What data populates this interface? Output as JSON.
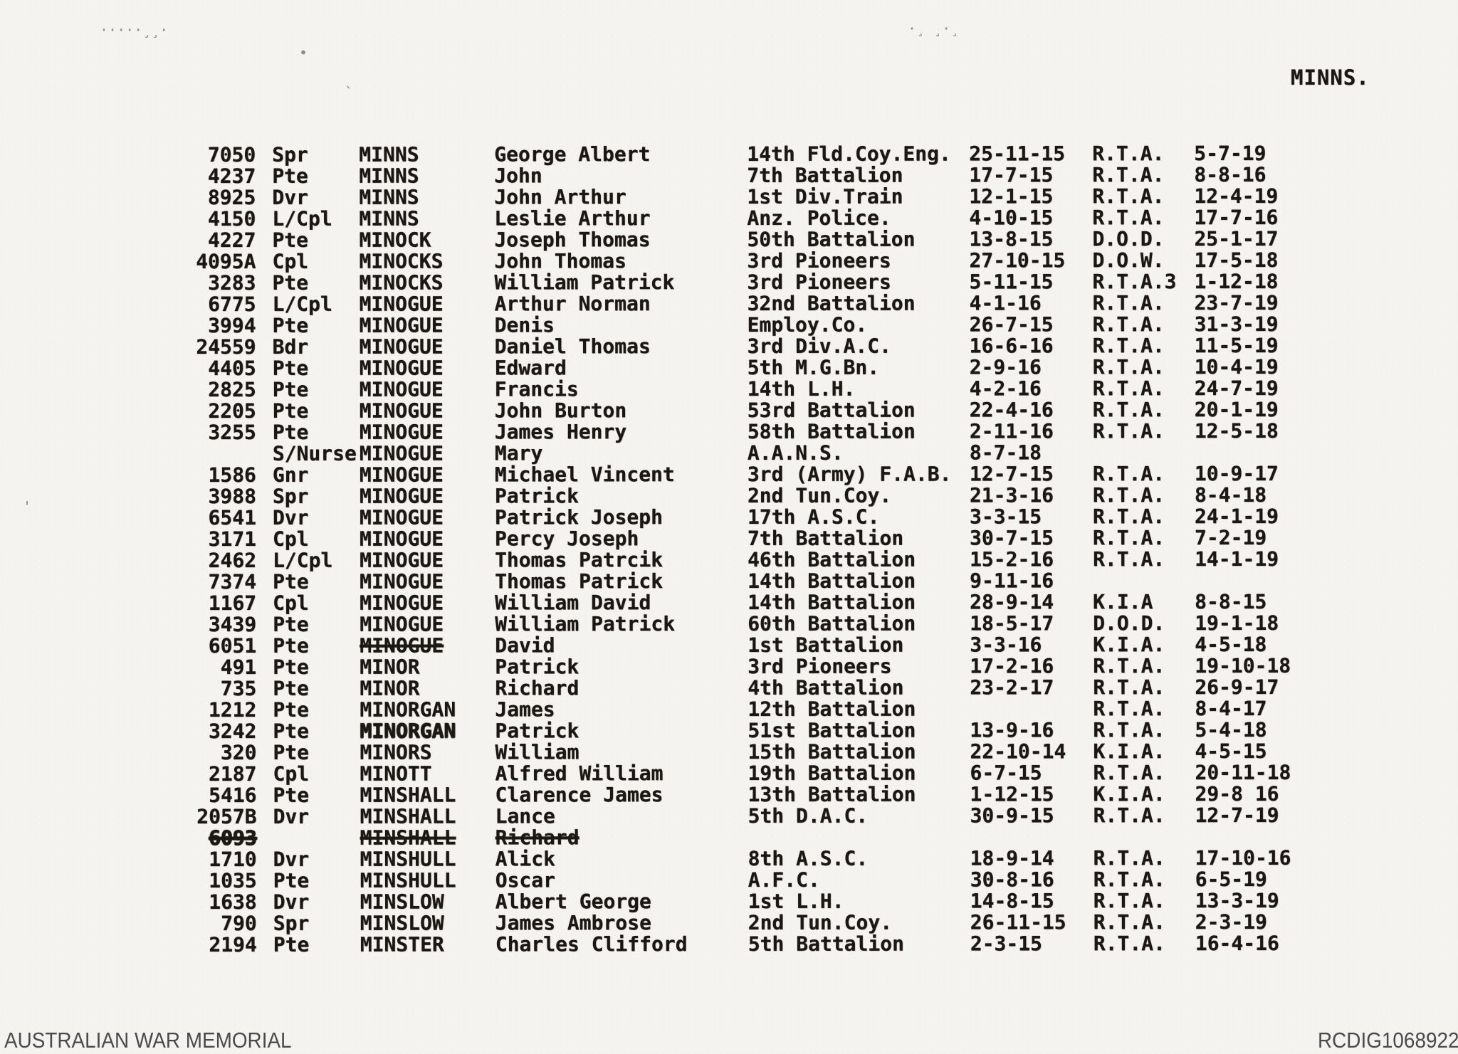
{
  "page": {
    "title": "MINNS."
  },
  "footer": {
    "left": "AUSTRALIAN WAR MEMORIAL",
    "right": "RCDIG1068922"
  },
  "table": {
    "rows": [
      {
        "num": "7050",
        "rank": "Spr",
        "surname": "MINNS",
        "given": "George Albert",
        "unit": "14th Fld.Coy.Eng.",
        "embark": "25-11-15",
        "fate": "R.T.A.",
        "date": "5-7-19"
      },
      {
        "num": "4237",
        "rank": "Pte",
        "surname": "MINNS",
        "given": "John",
        "unit": "7th Battalion",
        "embark": "17-7-15",
        "fate": "R.T.A.",
        "date": "8-8-16"
      },
      {
        "num": "8925",
        "rank": "Dvr",
        "surname": "MINNS",
        "given": "John Arthur",
        "unit": "1st Div.Train",
        "embark": "12-1-15",
        "fate": "R.T.A.",
        "date": "12-4-19"
      },
      {
        "num": "4150",
        "rank": "L/Cpl",
        "surname": "MINNS",
        "given": "Leslie Arthur",
        "unit": "Anz. Police.",
        "embark": "4-10-15",
        "fate": "R.T.A.",
        "date": "17-7-16"
      },
      {
        "num": "4227",
        "rank": "Pte",
        "surname": "MINOCK",
        "given": "Joseph Thomas",
        "unit": "50th Battalion",
        "embark": "13-8-15",
        "fate": "D.O.D.",
        "date": "25-1-17"
      },
      {
        "num": "4095A",
        "rank": "Cpl",
        "surname": "MINOCKS",
        "given": "John Thomas",
        "unit": "3rd Pioneers",
        "embark": "27-10-15",
        "fate": "D.O.W.",
        "date": "17-5-18"
      },
      {
        "num": "3283",
        "rank": "Pte",
        "surname": "MINOCKS",
        "given": "William Patrick",
        "unit": "3rd Pioneers",
        "embark": "5-11-15",
        "fate": "R.T.A.3",
        "date": "1-12-18"
      },
      {
        "num": "6775",
        "rank": "L/Cpl",
        "surname": "MINOGUE",
        "given": "Arthur Norman",
        "unit": "32nd Battalion",
        "embark": "4-1-16",
        "fate": "R.T.A.",
        "date": "23-7-19"
      },
      {
        "num": "3994",
        "rank": "Pte",
        "surname": "MINOGUE",
        "given": "Denis",
        "unit": "Employ.Co.",
        "embark": "26-7-15",
        "fate": "R.T.A.",
        "date": "31-3-19"
      },
      {
        "num": "24559",
        "rank": "Bdr",
        "surname": "MINOGUE",
        "given": "Daniel Thomas",
        "unit": "3rd Div.A.C.",
        "embark": "16-6-16",
        "fate": "R.T.A.",
        "date": "11-5-19"
      },
      {
        "num": "4405",
        "rank": "Pte",
        "surname": "MINOGUE",
        "given": "Edward",
        "unit": "5th M.G.Bn.",
        "embark": "2-9-16",
        "fate": "R.T.A.",
        "date": "10-4-19"
      },
      {
        "num": "2825",
        "rank": "Pte",
        "surname": "MINOGUE",
        "given": "Francis",
        "unit": "14th L.H.",
        "embark": "4-2-16",
        "fate": "R.T.A.",
        "date": "24-7-19"
      },
      {
        "num": "2205",
        "rank": "Pte",
        "surname": "MINOGUE",
        "given": "John Burton",
        "unit": "53rd Battalion",
        "embark": "22-4-16",
        "fate": "R.T.A.",
        "date": "20-1-19"
      },
      {
        "num": "3255",
        "rank": "Pte",
        "surname": "MINOGUE",
        "given": "James Henry",
        "unit": "58th Battalion",
        "embark": "2-11-16",
        "fate": "R.T.A.",
        "date": "12-5-18"
      },
      {
        "num": "",
        "rank": "S/Nurse",
        "surname": "MINOGUE",
        "given": "Mary",
        "unit": "A.A.N.S.",
        "embark": "8-7-18",
        "fate": "",
        "date": ""
      },
      {
        "num": "1586",
        "rank": "Gnr",
        "surname": "MINOGUE",
        "given": "Michael Vincent",
        "unit": "3rd (Army) F.A.B.",
        "embark": "12-7-15",
        "fate": "R.T.A.",
        "date": "10-9-17"
      },
      {
        "num": "3988",
        "rank": "Spr",
        "surname": "MINOGUE",
        "given": "Patrick",
        "unit": "2nd Tun.Coy.",
        "embark": "21-3-16",
        "fate": "R.T.A.",
        "date": "8-4-18"
      },
      {
        "num": "6541",
        "rank": "Dvr",
        "surname": "MINOGUE",
        "given": "Patrick Joseph",
        "unit": "17th A.S.C.",
        "embark": "3-3-15",
        "fate": "R.T.A.",
        "date": "24-1-19"
      },
      {
        "num": "3171",
        "rank": "Cpl",
        "surname": "MINOGUE",
        "given": "Percy Joseph",
        "unit": "7th Battalion",
        "embark": "30-7-15",
        "fate": "R.T.A.",
        "date": "7-2-19"
      },
      {
        "num": "2462",
        "rank": "L/Cpl",
        "surname": "MINOGUE",
        "given": "Thomas Patrcik",
        "unit": "46th Battalion",
        "embark": "15-2-16",
        "fate": "R.T.A.",
        "date": "14-1-19"
      },
      {
        "num": "7374",
        "rank": "Pte",
        "surname": "MINOGUE",
        "given": "Thomas Patrick",
        "unit": "14th Battalion",
        "embark": "9-11-16",
        "fate": "",
        "date": ""
      },
      {
        "num": "1167",
        "rank": "Cpl",
        "surname": "MINOGUE",
        "given": "William David",
        "unit": "14th Battalion",
        "embark": "28-9-14",
        "fate": "K.I.A",
        "date": "8-8-15"
      },
      {
        "num": "3439",
        "rank": "Pte",
        "surname": "MINOGUE",
        "given": "William Patrick",
        "unit": "60th Battalion",
        "embark": "18-5-17",
        "fate": "D.O.D.",
        "date": "19-1-18"
      },
      {
        "num": "6051",
        "rank": "Pte",
        "surname": "MINOGUE",
        "given": "David",
        "unit": "1st Battalion",
        "embark": "3-3-16",
        "fate": "K.I.A.",
        "date": "4-5-18",
        "struck": [
          "surname"
        ]
      },
      {
        "num": "491",
        "rank": "Pte",
        "surname": "MINOR",
        "given": "Patrick",
        "unit": "3rd Pioneers",
        "embark": "17-2-16",
        "fate": "R.T.A.",
        "date": "19-10-18"
      },
      {
        "num": "735",
        "rank": "Pte",
        "surname": "MINOR",
        "given": "Richard",
        "unit": "4th Battalion",
        "embark": "23-2-17",
        "fate": "R.T.A.",
        "date": "26-9-17"
      },
      {
        "num": "1212",
        "rank": "Pte",
        "surname": "MINORGAN",
        "given": "James",
        "unit": "12th Battalion",
        "embark": "",
        "fate": "R.T.A.",
        "date": "8-4-17"
      },
      {
        "num": "3242",
        "rank": "Pte",
        "surname": "MINORGAN",
        "given": "Patrick",
        "unit": "51st Battalion",
        "embark": "13-9-16",
        "fate": "R.T.A.",
        "date": "5-4-18",
        "heavy": [
          "surname"
        ]
      },
      {
        "num": "320",
        "rank": "Pte",
        "surname": "MINORS",
        "given": "William",
        "unit": "15th Battalion",
        "embark": "22-10-14",
        "fate": "K.I.A.",
        "date": "4-5-15"
      },
      {
        "num": "2187",
        "rank": "Cpl",
        "surname": "MINOTT",
        "given": "Alfred William",
        "unit": "19th Battalion",
        "embark": "6-7-15",
        "fate": "R.T.A.",
        "date": "20-11-18"
      },
      {
        "num": "5416",
        "rank": "Pte",
        "surname": "MINSHALL",
        "given": "Clarence James",
        "unit": "13th Battalion",
        "embark": "1-12-15",
        "fate": "K.I.A.",
        "date": "29-8 16"
      },
      {
        "num": "2057B",
        "rank": "Dvr",
        "surname": "MINSHALL",
        "given": "Lance",
        "unit": "5th D.A.C.",
        "embark": "30-9-15",
        "fate": "R.T.A.",
        "date": "12-7-19"
      },
      {
        "num": "6093",
        "rank": "",
        "surname": "MINSHALL",
        "given": "Richard",
        "unit": "",
        "embark": "",
        "fate": "",
        "date": "",
        "struck": [
          "num",
          "surname",
          "given"
        ],
        "heavy": [
          "num"
        ]
      },
      {
        "num": "1710",
        "rank": "Dvr",
        "surname": "MINSHULL",
        "given": "Alick",
        "unit": "8th A.S.C.",
        "embark": "18-9-14",
        "fate": "R.T.A.",
        "date": "17-10-16"
      },
      {
        "num": "1035",
        "rank": "Pte",
        "surname": "MINSHULL",
        "given": "Oscar",
        "unit": "A.F.C.",
        "embark": "30-8-16",
        "fate": "R.T.A.",
        "date": "6-5-19"
      },
      {
        "num": "1638",
        "rank": "Dvr",
        "surname": "MINSLOW",
        "given": "Albert George",
        "unit": "1st L.H.",
        "embark": "14-8-15",
        "fate": "R.T.A.",
        "date": "13-3-19"
      },
      {
        "num": "790",
        "rank": "Spr",
        "surname": "MINSLOW",
        "given": "James Ambrose",
        "unit": "2nd Tun.Coy.",
        "embark": "26-11-15",
        "fate": "R.T.A.",
        "date": "2-3-19"
      },
      {
        "num": "2194",
        "rank": "Pte",
        "surname": "MINSTER",
        "given": "Charles Clifford",
        "unit": "5th Battalion",
        "embark": "2-3-15",
        "fate": "R.T.A.",
        "date": "16-4-16"
      }
    ]
  }
}
